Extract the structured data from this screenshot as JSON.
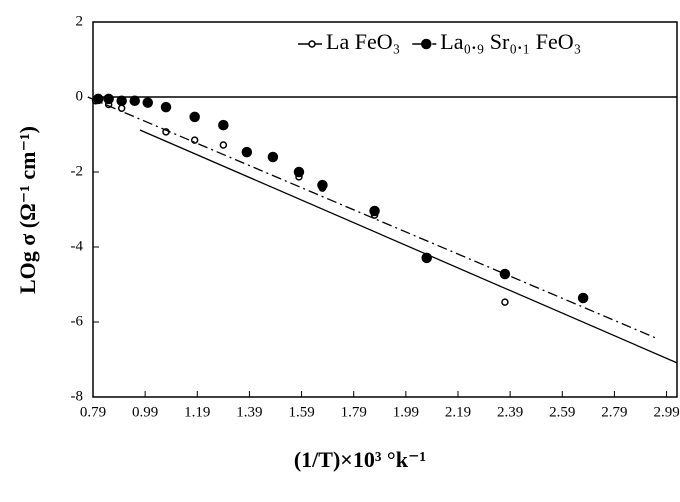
{
  "chart_data": {
    "type": "scatter",
    "x_label": "(1/T)×10³ °k⁻¹",
    "y_label": "LOg σ (Ω⁻¹ cm⁻¹)",
    "xlim": [
      0.79,
      3.03
    ],
    "ylim": [
      -8,
      2
    ],
    "xticks": [
      0.79,
      0.99,
      1.19,
      1.39,
      1.59,
      1.79,
      1.99,
      2.19,
      2.39,
      2.59,
      2.79,
      2.99
    ],
    "yticks": [
      -8,
      -6,
      -4,
      -2,
      0,
      2
    ],
    "hline": 0,
    "legend": "upper-right",
    "series": [
      {
        "name": "La FeO₃",
        "color": "#000000",
        "marker": "open-circle",
        "line": "solid",
        "x": [
          0.8,
          0.85,
          0.9,
          1.07,
          1.18,
          1.29,
          1.58,
          1.67,
          1.87,
          2.37
        ],
        "values": [
          -0.1,
          -0.2,
          -0.3,
          -0.93,
          -1.15,
          -1.28,
          -2.13,
          -2.43,
          -3.15,
          -5.47
        ],
        "fit": {
          "x": [
            0.97,
            3.03
          ],
          "y": [
            -0.88,
            -7.09
          ]
        }
      },
      {
        "name": "La₀.₉ Sr₀.₁ FeO₃",
        "color": "#000000",
        "marker": "filled-circle",
        "line": "dash-dot",
        "x": [
          0.81,
          0.85,
          0.9,
          0.95,
          1.0,
          1.07,
          1.18,
          1.29,
          1.38,
          1.48,
          1.58,
          1.67,
          1.87,
          2.07,
          2.37,
          2.67
        ],
        "values": [
          -0.05,
          -0.05,
          -0.1,
          -0.1,
          -0.15,
          -0.27,
          -0.53,
          -0.75,
          -1.47,
          -1.6,
          -2.0,
          -2.35,
          -3.04,
          -4.29,
          -4.72,
          -5.36
        ],
        "fit": {
          "x": [
            0.77,
            2.95
          ],
          "y": [
            0,
            -6.43
          ]
        }
      }
    ]
  }
}
